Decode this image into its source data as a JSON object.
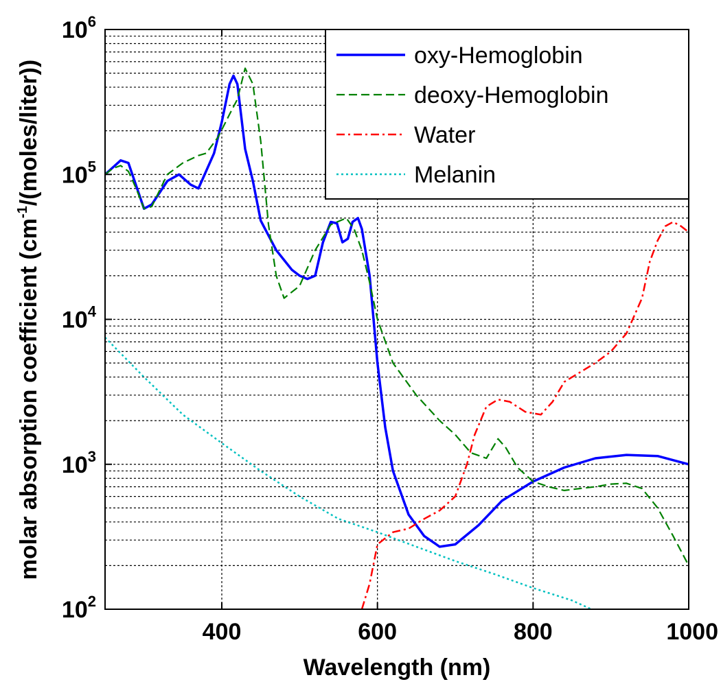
{
  "chart_data": {
    "type": "line",
    "xlabel": "Wavelength (nm)",
    "ylabel": {
      "before_sup": "molar absorption coefficient (cm",
      "sup": "-1",
      "after_sup": "/(moles/liter))"
    },
    "xlim": [
      250,
      1000
    ],
    "ylim": [
      100,
      1000000
    ],
    "yscale": "log",
    "grid": true,
    "legend_position": "top-right",
    "x_ticks": [
      400,
      600,
      800,
      1000
    ],
    "x_tick_labels": [
      "400",
      "600",
      "800",
      "1000"
    ],
    "y_ticks": [
      {
        "value": 100,
        "base": "10",
        "exp": "2"
      },
      {
        "value": 1000,
        "base": "10",
        "exp": "3"
      },
      {
        "value": 10000,
        "base": "10",
        "exp": "4"
      },
      {
        "value": 100000,
        "base": "10",
        "exp": "5"
      },
      {
        "value": 1000000,
        "base": "10",
        "exp": "6"
      }
    ],
    "series": [
      {
        "name": "oxy-Hemoglobin",
        "color": "#0000ff",
        "dash": "solid",
        "points": [
          [
            250,
            100000
          ],
          [
            270,
            125000
          ],
          [
            280,
            120000
          ],
          [
            300,
            58000
          ],
          [
            310,
            62000
          ],
          [
            330,
            90000
          ],
          [
            345,
            100000
          ],
          [
            360,
            85000
          ],
          [
            370,
            80000
          ],
          [
            390,
            140000
          ],
          [
            400,
            230000
          ],
          [
            410,
            420000
          ],
          [
            415,
            480000
          ],
          [
            420,
            420000
          ],
          [
            430,
            150000
          ],
          [
            440,
            90000
          ],
          [
            450,
            48000
          ],
          [
            470,
            30000
          ],
          [
            490,
            22000
          ],
          [
            500,
            20000
          ],
          [
            510,
            19000
          ],
          [
            520,
            20000
          ],
          [
            530,
            34000
          ],
          [
            540,
            47000
          ],
          [
            548,
            46000
          ],
          [
            555,
            34000
          ],
          [
            562,
            36000
          ],
          [
            568,
            47000
          ],
          [
            575,
            50000
          ],
          [
            580,
            42000
          ],
          [
            590,
            20000
          ],
          [
            600,
            5000
          ],
          [
            610,
            1800
          ],
          [
            620,
            900
          ],
          [
            640,
            450
          ],
          [
            660,
            320
          ],
          [
            680,
            270
          ],
          [
            700,
            280
          ],
          [
            730,
            380
          ],
          [
            760,
            560
          ],
          [
            800,
            760
          ],
          [
            840,
            950
          ],
          [
            880,
            1100
          ],
          [
            920,
            1160
          ],
          [
            960,
            1140
          ],
          [
            1000,
            1000
          ]
        ]
      },
      {
        "name": "deoxy-Hemoglobin",
        "color": "#008000",
        "dash": "dashed",
        "points": [
          [
            250,
            100000
          ],
          [
            260,
            110000
          ],
          [
            270,
            115000
          ],
          [
            280,
            105000
          ],
          [
            290,
            80000
          ],
          [
            300,
            58000
          ],
          [
            310,
            60000
          ],
          [
            330,
            100000
          ],
          [
            350,
            120000
          ],
          [
            370,
            135000
          ],
          [
            380,
            140000
          ],
          [
            395,
            180000
          ],
          [
            410,
            260000
          ],
          [
            420,
            330000
          ],
          [
            430,
            540000
          ],
          [
            440,
            420000
          ],
          [
            450,
            170000
          ],
          [
            460,
            45000
          ],
          [
            470,
            20000
          ],
          [
            480,
            14000
          ],
          [
            500,
            17000
          ],
          [
            520,
            30000
          ],
          [
            540,
            45000
          ],
          [
            560,
            50000
          ],
          [
            570,
            42000
          ],
          [
            580,
            30000
          ],
          [
            590,
            18000
          ],
          [
            600,
            10000
          ],
          [
            620,
            5000
          ],
          [
            650,
            3000
          ],
          [
            680,
            2000
          ],
          [
            700,
            1600
          ],
          [
            720,
            1200
          ],
          [
            740,
            1100
          ],
          [
            755,
            1500
          ],
          [
            765,
            1300
          ],
          [
            780,
            950
          ],
          [
            800,
            760
          ],
          [
            820,
            700
          ],
          [
            840,
            660
          ],
          [
            860,
            680
          ],
          [
            880,
            700
          ],
          [
            900,
            730
          ],
          [
            920,
            740
          ],
          [
            940,
            680
          ],
          [
            960,
            500
          ],
          [
            980,
            320
          ],
          [
            1000,
            200
          ]
        ]
      },
      {
        "name": "Water",
        "color": "#ff0000",
        "dash": "dashdot",
        "points": [
          [
            580,
            100
          ],
          [
            590,
            150
          ],
          [
            600,
            280
          ],
          [
            620,
            340
          ],
          [
            640,
            360
          ],
          [
            660,
            420
          ],
          [
            680,
            480
          ],
          [
            700,
            600
          ],
          [
            715,
            1000
          ],
          [
            725,
            1600
          ],
          [
            740,
            2500
          ],
          [
            755,
            2800
          ],
          [
            770,
            2700
          ],
          [
            790,
            2300
          ],
          [
            810,
            2200
          ],
          [
            825,
            2700
          ],
          [
            840,
            3700
          ],
          [
            860,
            4300
          ],
          [
            880,
            5000
          ],
          [
            900,
            6000
          ],
          [
            920,
            8000
          ],
          [
            940,
            14000
          ],
          [
            950,
            25000
          ],
          [
            960,
            35000
          ],
          [
            970,
            44000
          ],
          [
            980,
            47000
          ],
          [
            990,
            44000
          ],
          [
            1000,
            40000
          ]
        ]
      },
      {
        "name": "Melanin",
        "color": "#00c0c0",
        "dash": "dotted",
        "points": [
          [
            250,
            7500
          ],
          [
            300,
            4000
          ],
          [
            350,
            2200
          ],
          [
            400,
            1400
          ],
          [
            450,
            900
          ],
          [
            500,
            600
          ],
          [
            550,
            420
          ],
          [
            600,
            340
          ],
          [
            650,
            270
          ],
          [
            700,
            215
          ],
          [
            750,
            175
          ],
          [
            800,
            140
          ],
          [
            850,
            115
          ],
          [
            875,
            100
          ]
        ]
      }
    ]
  }
}
